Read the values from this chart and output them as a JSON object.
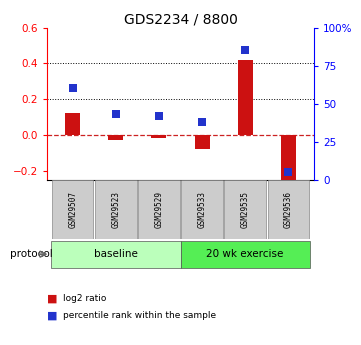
{
  "title": "GDS2234 / 8800",
  "samples": [
    "GSM29507",
    "GSM29523",
    "GSM29529",
    "GSM29533",
    "GSM29535",
    "GSM29536"
  ],
  "log2_ratio": [
    0.12,
    -0.03,
    -0.02,
    -0.08,
    0.42,
    -0.25
  ],
  "percentile_rank": [
    60,
    43,
    42,
    38,
    85,
    5
  ],
  "ylim_left": [
    -0.25,
    0.6
  ],
  "ylim_right": [
    0,
    100
  ],
  "yticks_left": [
    -0.2,
    0.0,
    0.2,
    0.4,
    0.6
  ],
  "yticks_right": [
    0,
    25,
    50,
    75,
    100
  ],
  "hlines": [
    0.2,
    0.4
  ],
  "bar_color": "#cc1111",
  "dot_color": "#2233cc",
  "zero_line_color": "#cc2222",
  "protocol_groups": [
    {
      "label": "baseline",
      "start": 0,
      "end": 3,
      "color": "#bbffbb"
    },
    {
      "label": "20 wk exercise",
      "start": 3,
      "end": 6,
      "color": "#55ee55"
    }
  ],
  "protocol_label": "protocol",
  "legend_items": [
    {
      "color": "#cc1111",
      "label": "log2 ratio"
    },
    {
      "color": "#2233cc",
      "label": "percentile rank within the sample"
    }
  ],
  "bar_width": 0.35,
  "dot_size": 40,
  "background_color": "#ffffff",
  "tick_label_bg": "#cccccc",
  "tick_label_area_bg": "#dddddd"
}
